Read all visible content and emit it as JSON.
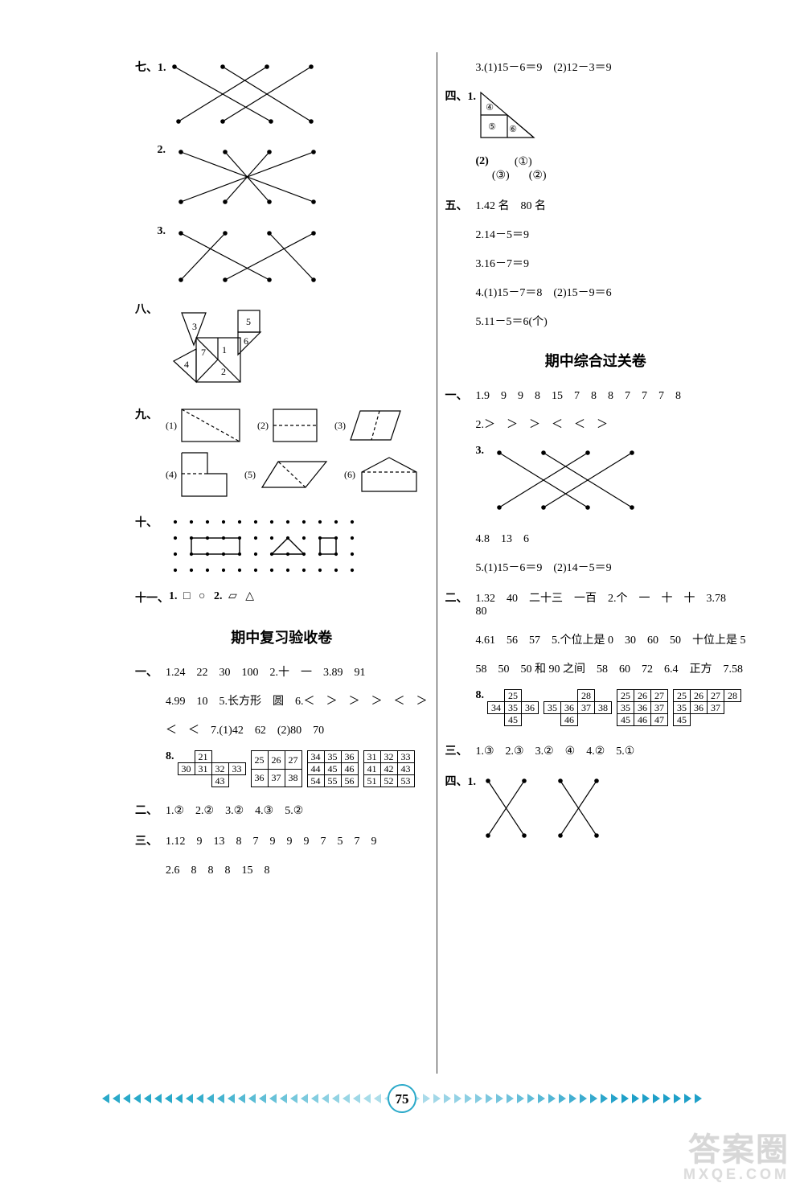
{
  "left": {
    "q7_label": "七、1.",
    "q7_2_label": "2.",
    "q7_3_label": "3.",
    "q8_label": "八、",
    "q9_label": "九、",
    "q9_parts": [
      "(1)",
      "(2)",
      "(3)",
      "(4)",
      "(5)",
      "(6)"
    ],
    "q10_label": "十、",
    "q11_label": "十一、",
    "q11_text_parts": {
      "p1": "1.",
      "p2": "□",
      "p3": "○",
      "p4": "2.",
      "p5": "▱",
      "p6": "△"
    },
    "title1": "期中复习验收卷",
    "s1": {
      "label": "一、",
      "l1": "1.24　22　30　100　2.十　一　3.89　91",
      "l2": "4.99　10　5.长方形　圆　6.＜　＞　＞　＞　＜　＞",
      "l3": "＜　＜　7.(1)42　62　(2)80　70",
      "l4_label": "8."
    },
    "grids1": [
      [
        [
          "",
          "21",
          ""
        ],
        [
          "30",
          "31",
          "32",
          "33"
        ],
        [
          "",
          "",
          "43",
          ""
        ]
      ],
      [
        [
          "25",
          "26",
          "27"
        ],
        [
          "36",
          "37",
          "38"
        ]
      ],
      [
        [
          "34",
          "35",
          "36"
        ],
        [
          "44",
          "45",
          "46"
        ],
        [
          "54",
          "55",
          "56"
        ]
      ],
      [
        [
          "31",
          "32",
          "33"
        ],
        [
          "41",
          "42",
          "43"
        ],
        [
          "51",
          "52",
          "53"
        ]
      ]
    ],
    "s2": {
      "label": "二、",
      "text": "1.②　2.②　3.②　4.③　5.②"
    },
    "s3": {
      "label": "三、",
      "l1": "1.12　9　13　8　7　9　9　9　7　5　7　9",
      "l2": "2.6　8　8　8　15　8"
    }
  },
  "right": {
    "top_l1": "3.(1)15－6＝9　(2)12－3＝9",
    "q4_label": "四、1.",
    "tri_numbers": [
      "④",
      "⑤",
      "⑥"
    ],
    "q4_2": {
      "label": "(2)",
      "c1": "(①)",
      "c2": "(③)",
      "c3": "(②)"
    },
    "q5": {
      "label": "五、",
      "l1": "1.42 名　80 名",
      "l2": "2.14－5＝9",
      "l3": "3.16－7＝9",
      "l4": "4.(1)15－7＝8　(2)15－9＝6",
      "l5": "5.11－5＝6(个)"
    },
    "title2": "期中综合过关卷",
    "r1": {
      "label": "一、",
      "l1": "1.9　9　9　8　15　7　8　8　7　7　7　8",
      "l2": "2.＞　＞　＞　＜　＜　＞",
      "l3_label": "3.",
      "l4": "4.8　13　6",
      "l5": "5.(1)15－6＝9　(2)14－5＝9"
    },
    "r2": {
      "label": "二、",
      "l1": "1.32　40　二十三　一百　2.个　一　十　十　3.78　80",
      "l2": "4.61　56　57　5.个位上是 0　30　60　50　十位上是 5",
      "l3": "58　50　50 和 90 之间　58　60　72　6.4　正方　7.58",
      "l4_label": "8."
    },
    "grids2": [
      [
        [
          "",
          "25",
          ""
        ],
        [
          "34",
          "35",
          "36"
        ],
        [
          "",
          "45",
          ""
        ]
      ],
      [
        [
          "",
          "",
          "28"
        ],
        [
          "35",
          "36",
          "37",
          "38"
        ],
        [
          "",
          "46",
          "",
          ""
        ]
      ],
      [
        [
          "25",
          "26",
          "27"
        ],
        [
          "35",
          "36",
          "37"
        ],
        [
          "45",
          "46",
          "47"
        ]
      ],
      [
        [
          "25",
          "26",
          "27",
          "28"
        ],
        [
          "35",
          "36",
          "37"
        ],
        [
          "45"
        ]
      ]
    ],
    "r3": {
      "label": "三、",
      "text": "1.③　2.③　3.②　④　4.②　5.①"
    },
    "r4_label": "四、1."
  },
  "page_number": "75",
  "watermark": {
    "line1": "答案圈",
    "line2": "MXQE.COM"
  },
  "colors": {
    "arrow_left": "#2aa9c9",
    "arrow_right": "#1fa0c8",
    "page_ring": "#2aa9c9",
    "page_fill": "#ffffff"
  }
}
